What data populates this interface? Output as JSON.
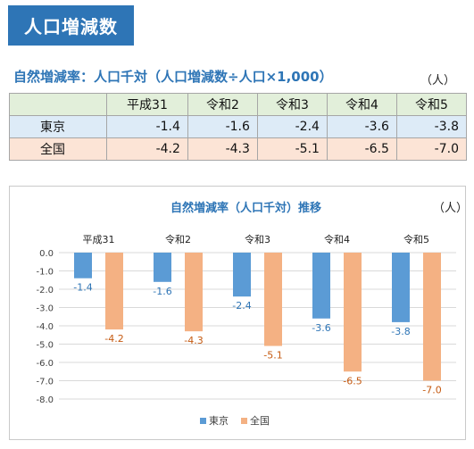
{
  "page": {
    "title": "人口増減数",
    "table_title": "自然増減率：人口千対（人口増減数÷人口×1,000）",
    "table_unit": "（人）"
  },
  "table": {
    "columns": [
      "平成31",
      "令和2",
      "令和3",
      "令和4",
      "令和5"
    ],
    "rows": [
      {
        "name": "東京",
        "values": [
          "-1.4",
          "-1.6",
          "-2.4",
          "-3.6",
          "-3.8"
        ]
      },
      {
        "name": "全国",
        "values": [
          "-4.2",
          "-4.3",
          "-5.1",
          "-6.5",
          "-7.0"
        ]
      }
    ]
  },
  "chart_data": {
    "type": "bar",
    "title": "自然増減率（人口千対）推移",
    "unit": "（人）",
    "categories": [
      "平成31",
      "令和2",
      "令和3",
      "令和4",
      "令和5"
    ],
    "series": [
      {
        "name": "東京",
        "values": [
          -1.4,
          -1.6,
          -2.4,
          -3.6,
          -3.8
        ],
        "color": "#5b9bd5"
      },
      {
        "name": "全国",
        "values": [
          -4.2,
          -4.3,
          -5.1,
          -6.5,
          -7.0
        ],
        "color": "#f4b183"
      }
    ],
    "ylim": [
      -8.0,
      0.0
    ],
    "yticks": [
      0.0,
      -1.0,
      -2.0,
      -3.0,
      -4.0,
      -5.0,
      -6.0,
      -7.0,
      -8.0
    ],
    "ytick_labels": [
      "0.0",
      "-1.0",
      "-2.0",
      "-3.0",
      "-4.0",
      "-5.0",
      "-6.0",
      "-7.0",
      "-8.0"
    ],
    "data_labels": [
      [
        "-1.4",
        "-1.6",
        "-2.4",
        "-3.6",
        "-3.8"
      ],
      [
        "-4.2",
        "-4.3",
        "-5.1",
        "-6.5",
        "-7.0"
      ]
    ],
    "grid": true,
    "category_axis_position": "top",
    "legend": "bottom-center"
  }
}
